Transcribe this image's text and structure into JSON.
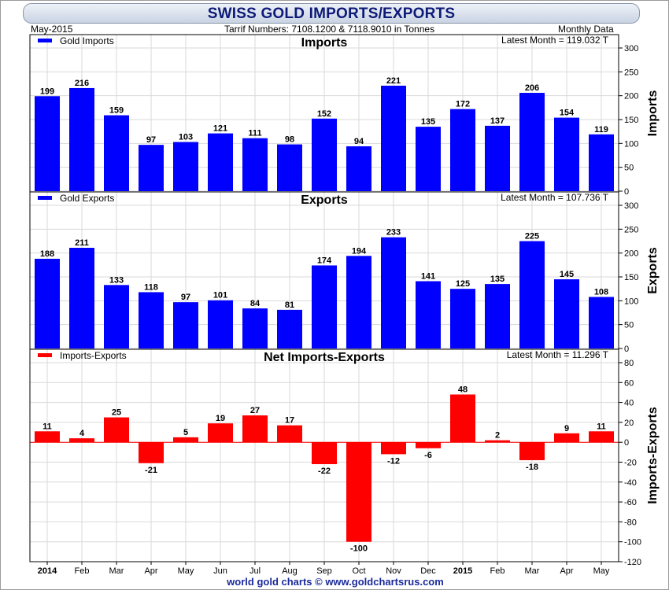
{
  "header": {
    "title": "SWISS GOLD IMPORTS/EXPORTS",
    "date": "May-2015",
    "tariff": "Tarrif Numbers: 7108.1200 & 7118.9010 in Tonnes",
    "frequency": "Monthly Data"
  },
  "footer": {
    "credit": "world gold charts © www.goldchartsrus.com"
  },
  "colors": {
    "imports": "#0000ff",
    "exports": "#0000ff",
    "net": "#ff0000",
    "grid": "#d9d9d9"
  },
  "chart_data": [
    {
      "type": "bar",
      "title": "Imports",
      "ylabel": "Imports",
      "legend": "Gold Imports",
      "legend_position": "top-left",
      "latest": "Latest Month = 119.032 T",
      "ylim": [
        0,
        300
      ],
      "yticks": [
        0,
        50,
        100,
        150,
        200,
        250,
        300
      ],
      "grid": true,
      "categories": [
        "2014",
        "Feb",
        "Mar",
        "Apr",
        "May",
        "Jun",
        "Jul",
        "Aug",
        "Sep",
        "Oct",
        "Nov",
        "Dec",
        "2015",
        "Feb",
        "Mar",
        "Apr",
        "May"
      ],
      "values": [
        199,
        216,
        159,
        97,
        103,
        121,
        111,
        98,
        152,
        94,
        221,
        135,
        172,
        137,
        206,
        154,
        119
      ],
      "color": "#0000ff"
    },
    {
      "type": "bar",
      "title": "Exports",
      "ylabel": "Exports",
      "legend": "Gold Exports",
      "legend_position": "top-left",
      "latest": "Latest Month = 107.736 T",
      "ylim": [
        0,
        300
      ],
      "yticks": [
        0,
        50,
        100,
        150,
        200,
        250,
        300
      ],
      "grid": true,
      "categories": [
        "2014",
        "Feb",
        "Mar",
        "Apr",
        "May",
        "Jun",
        "Jul",
        "Aug",
        "Sep",
        "Oct",
        "Nov",
        "Dec",
        "2015",
        "Feb",
        "Mar",
        "Apr",
        "May"
      ],
      "values": [
        188,
        211,
        133,
        118,
        97,
        101,
        84,
        81,
        174,
        194,
        233,
        141,
        125,
        135,
        225,
        145,
        108
      ],
      "color": "#0000ff"
    },
    {
      "type": "bar",
      "title": "Net Imports-Exports",
      "ylabel": "Imports-Exports",
      "legend": "Imports-Exports",
      "legend_position": "top-left",
      "latest": "Latest Month = 11.296 T",
      "ylim": [
        -120,
        80
      ],
      "yticks": [
        -120,
        -100,
        -80,
        -60,
        -40,
        -20,
        0,
        20,
        40,
        60,
        80
      ],
      "grid": true,
      "categories": [
        "2014",
        "Feb",
        "Mar",
        "Apr",
        "May",
        "Jun",
        "Jul",
        "Aug",
        "Sep",
        "Oct",
        "Nov",
        "Dec",
        "2015",
        "Feb",
        "Mar",
        "Apr",
        "May"
      ],
      "values": [
        11,
        4,
        25,
        -21,
        5,
        19,
        27,
        17,
        -22,
        -100,
        -12,
        -6,
        48,
        2,
        -18,
        9,
        11
      ],
      "color": "#ff0000"
    }
  ],
  "x_axis": {
    "labels": [
      "2014",
      "Feb",
      "Mar",
      "Apr",
      "May",
      "Jun",
      "Jul",
      "Aug",
      "Sep",
      "Oct",
      "Nov",
      "Dec",
      "2015",
      "Feb",
      "Mar",
      "Apr",
      "May"
    ],
    "bold_labels": [
      "2014",
      "2015"
    ]
  }
}
